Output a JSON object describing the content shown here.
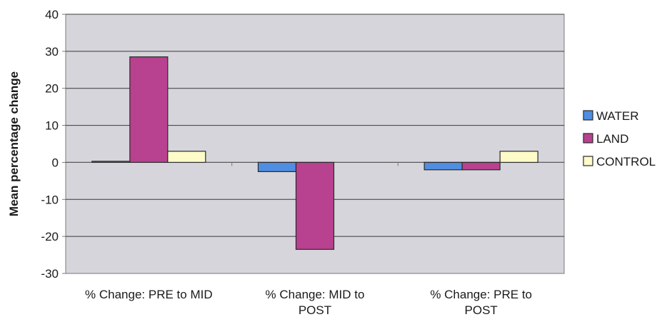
{
  "chart_data": {
    "type": "bar",
    "ylabel": "Mean percentage change",
    "xlabel": "",
    "ylim": [
      -30,
      40
    ],
    "yticks": [
      40,
      30,
      20,
      10,
      0,
      -10,
      -20,
      -30
    ],
    "grid": true,
    "legend_position": "right",
    "categories": [
      [
        "% Change: PRE to MID"
      ],
      [
        "% Change: MID to",
        "POST"
      ],
      [
        "% Change: PRE to",
        "POST"
      ]
    ],
    "series": [
      {
        "name": "WATER",
        "color": "#4f8ee0",
        "values": [
          0.3,
          -2.5,
          -2
        ]
      },
      {
        "name": "LAND",
        "color": "#b8428f",
        "values": [
          28.5,
          -23.5,
          -2
        ]
      },
      {
        "name": "CONTROL",
        "color": "#fdfbc8",
        "values": [
          3,
          0,
          3
        ]
      }
    ],
    "colors": {
      "plot_background": "#d5d5db",
      "gridline": "#3a3a3a",
      "axis": "#7a7a7a",
      "text": "#1a1a1a"
    }
  }
}
